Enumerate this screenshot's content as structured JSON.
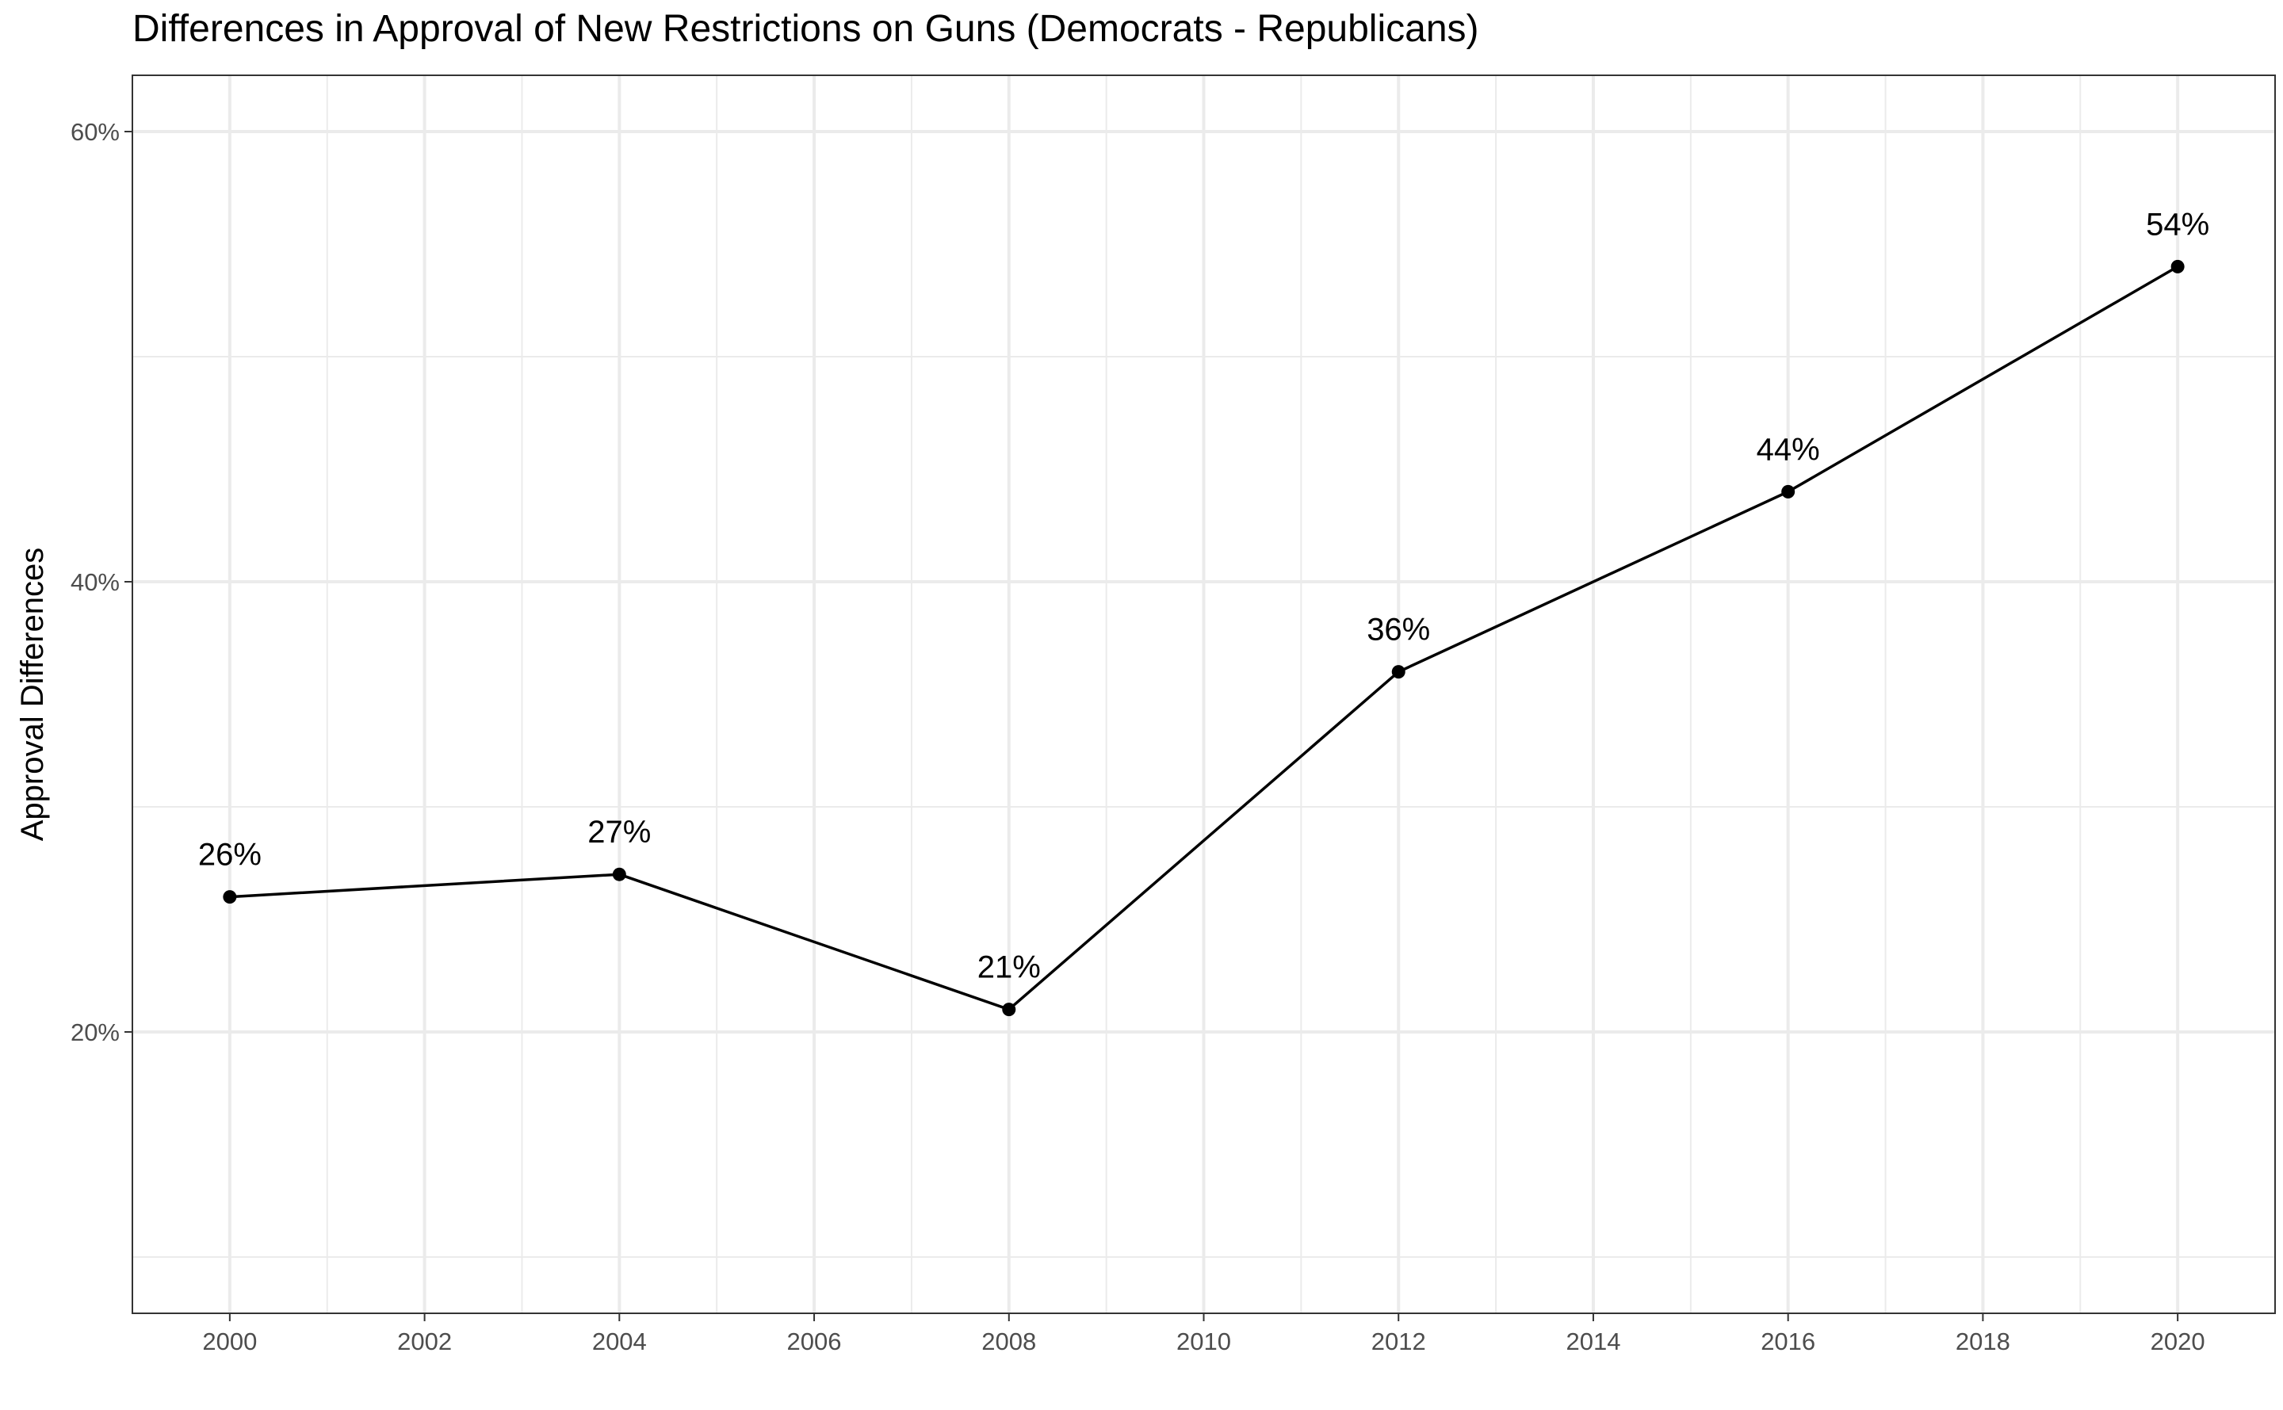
{
  "chart_data": {
    "type": "line",
    "title": "Differences in Approval of New Restrictions on Guns (Democrats - Republicans)",
    "xlabel": "",
    "ylabel": "Approval Differences",
    "x": [
      2000,
      2004,
      2008,
      2012,
      2016,
      2020
    ],
    "series": [
      {
        "values": [
          26,
          27,
          21,
          36,
          44,
          54
        ],
        "labels": [
          "26%",
          "27%",
          "21%",
          "36%",
          "44%",
          "54%"
        ],
        "color": "#000000"
      }
    ],
    "xlim": [
      1999,
      2021
    ],
    "ylim": [
      7.5,
      62.5
    ],
    "x_ticks": [
      2000,
      2002,
      2004,
      2006,
      2008,
      2010,
      2012,
      2014,
      2016,
      2018,
      2020
    ],
    "x_tick_labels": [
      "2000",
      "2002",
      "2004",
      "2006",
      "2008",
      "2010",
      "2012",
      "2014",
      "2016",
      "2018",
      "2020"
    ],
    "y_ticks": [
      20,
      40,
      60
    ],
    "y_tick_labels": [
      "20%",
      "40%",
      "60%"
    ],
    "y_minor_ticks": [
      10,
      30,
      50
    ],
    "grid": true,
    "legend": "none",
    "colors": {
      "grid": "#ebebeb",
      "panel_border": "#333333",
      "tick_text": "#4d4d4d"
    }
  }
}
